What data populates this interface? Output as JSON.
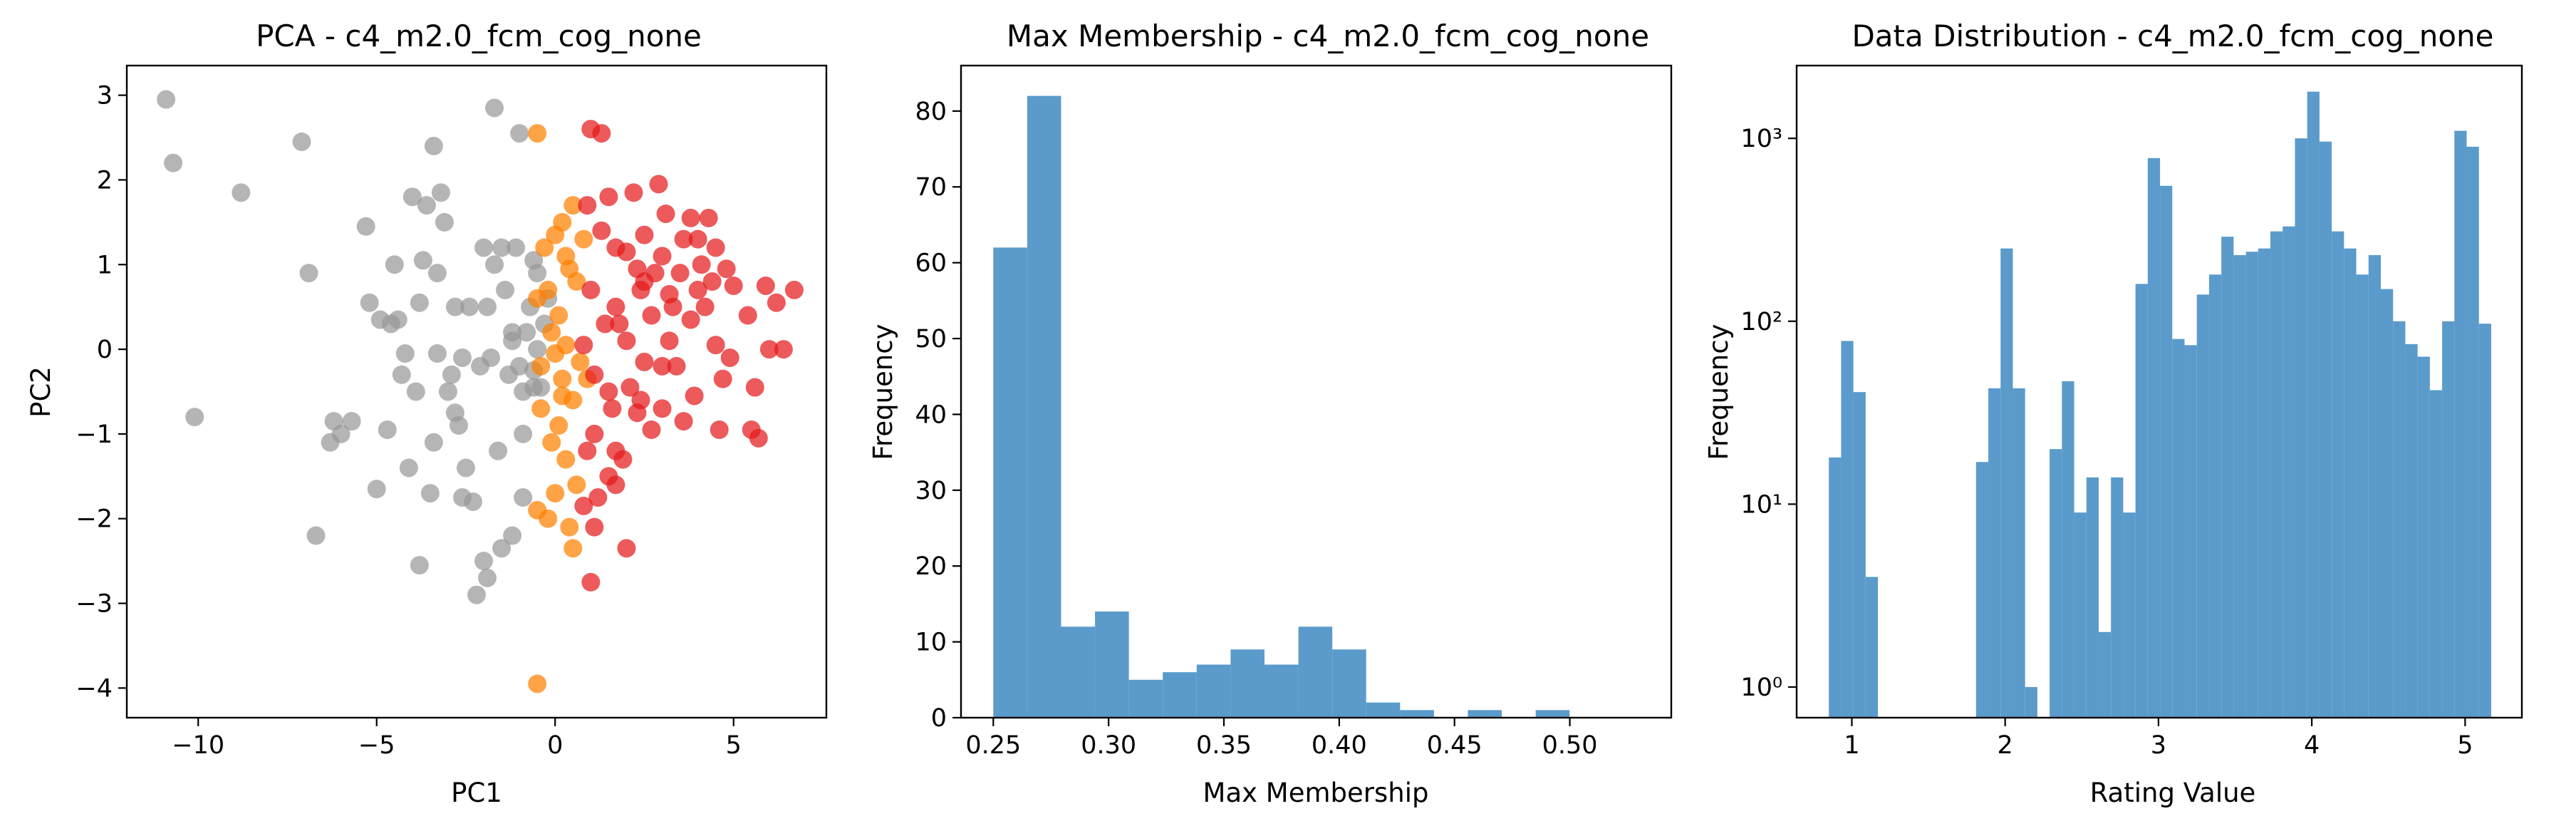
{
  "colors": {
    "red": "#e41a1c",
    "orange": "#ff7f00",
    "gray": "#999999",
    "hist": "#5a9bcb"
  },
  "chart_data": [
    {
      "type": "scatter",
      "title": "PCA - c4_m2.0_fcm_cog_none",
      "xlabel": "PC1",
      "ylabel": "PC2",
      "xlim": [
        -12,
        7.6
      ],
      "ylim": [
        -4.35,
        3.35
      ],
      "xticks": [
        -10,
        -5,
        0,
        5
      ],
      "xtick_labels": [
        "−10",
        "−5",
        "0",
        "5"
      ],
      "yticks": [
        -4,
        -3,
        -2,
        -1,
        0,
        1,
        2,
        3
      ],
      "ytick_labels": [
        "−4",
        "−3",
        "−2",
        "−1",
        "0",
        "1",
        "2",
        "3"
      ],
      "grid": false,
      "series": [
        {
          "color": "gray",
          "points": [
            [
              -10.9,
              2.95
            ],
            [
              -10.7,
              2.2
            ],
            [
              -10.1,
              -0.8
            ],
            [
              -8.8,
              1.85
            ],
            [
              -7.1,
              2.45
            ],
            [
              -6.9,
              0.9
            ],
            [
              -6.7,
              -2.2
            ],
            [
              -6.3,
              -1.1
            ],
            [
              -6.2,
              -0.85
            ],
            [
              -6.0,
              -1.0
            ],
            [
              -5.7,
              -0.85
            ],
            [
              -5.3,
              1.45
            ],
            [
              -5.2,
              0.55
            ],
            [
              -5.0,
              -1.65
            ],
            [
              -4.9,
              0.35
            ],
            [
              -4.7,
              -0.95
            ],
            [
              -4.6,
              0.3
            ],
            [
              -4.5,
              1.0
            ],
            [
              -4.4,
              0.35
            ],
            [
              -4.3,
              -0.3
            ],
            [
              -4.2,
              -0.05
            ],
            [
              -4.1,
              -1.4
            ],
            [
              -4.0,
              1.8
            ],
            [
              -3.9,
              -0.5
            ],
            [
              -3.8,
              0.55
            ],
            [
              -3.7,
              1.05
            ],
            [
              -3.6,
              1.7
            ],
            [
              -3.5,
              -1.7
            ],
            [
              -3.4,
              2.4
            ],
            [
              -3.4,
              -1.1
            ],
            [
              -3.3,
              0.9
            ],
            [
              -3.2,
              1.85
            ],
            [
              -3.1,
              1.5
            ],
            [
              -3.0,
              -0.5
            ],
            [
              -2.9,
              -0.3
            ],
            [
              -2.8,
              -0.75
            ],
            [
              -2.8,
              0.5
            ],
            [
              -2.7,
              -0.9
            ],
            [
              -2.6,
              -0.1
            ],
            [
              -2.5,
              -1.4
            ],
            [
              -2.4,
              0.5
            ],
            [
              -2.3,
              -1.8
            ],
            [
              -2.2,
              -2.9
            ],
            [
              -2.1,
              -0.2
            ],
            [
              -2.0,
              1.2
            ],
            [
              -1.9,
              0.5
            ],
            [
              -1.8,
              -0.1
            ],
            [
              -1.7,
              1.0
            ],
            [
              -1.6,
              -1.2
            ],
            [
              -1.5,
              1.2
            ],
            [
              -1.4,
              0.7
            ],
            [
              -1.3,
              -0.3
            ],
            [
              -1.2,
              0.1
            ],
            [
              -1.1,
              1.2
            ],
            [
              -1.0,
              -0.2
            ],
            [
              -0.9,
              -0.5
            ],
            [
              -0.8,
              0.2
            ],
            [
              -0.7,
              0.5
            ],
            [
              -0.6,
              -0.25
            ],
            [
              -0.5,
              0.0
            ],
            [
              -0.4,
              -0.45
            ],
            [
              -0.3,
              0.3
            ],
            [
              -0.2,
              0.6
            ],
            [
              -1.7,
              2.85
            ],
            [
              -1.0,
              2.55
            ],
            [
              -1.9,
              -2.7
            ],
            [
              -1.5,
              -2.35
            ],
            [
              -2.0,
              -2.5
            ],
            [
              -2.6,
              -1.75
            ],
            [
              -3.8,
              -2.55
            ],
            [
              -0.5,
              0.9
            ],
            [
              -0.9,
              -1.0
            ],
            [
              -1.2,
              0.2
            ],
            [
              -0.6,
              -0.45
            ],
            [
              -1.2,
              -2.2
            ],
            [
              -0.9,
              -1.75
            ],
            [
              -0.6,
              1.05
            ],
            [
              -3.3,
              -0.05
            ]
          ]
        },
        {
          "color": "orange",
          "points": [
            [
              -0.5,
              2.55
            ],
            [
              -0.5,
              -3.95
            ],
            [
              0.5,
              1.7
            ],
            [
              0.2,
              1.5
            ],
            [
              0.0,
              1.35
            ],
            [
              -0.3,
              1.2
            ],
            [
              0.4,
              0.95
            ],
            [
              0.1,
              0.4
            ],
            [
              -0.2,
              0.7
            ],
            [
              -0.5,
              0.6
            ],
            [
              0.3,
              0.05
            ],
            [
              0.0,
              -0.05
            ],
            [
              -0.4,
              -0.2
            ],
            [
              0.2,
              -0.35
            ],
            [
              0.5,
              -0.6
            ],
            [
              0.1,
              -0.9
            ],
            [
              -0.1,
              -1.1
            ],
            [
              0.3,
              -1.3
            ],
            [
              0.0,
              -1.7
            ],
            [
              -0.2,
              -2.0
            ],
            [
              0.4,
              -2.1
            ],
            [
              0.6,
              -1.6
            ],
            [
              -0.5,
              -1.9
            ],
            [
              0.5,
              -2.35
            ],
            [
              -0.4,
              -0.7
            ],
            [
              0.3,
              1.1
            ],
            [
              -0.1,
              0.2
            ],
            [
              0.8,
              1.3
            ],
            [
              0.6,
              0.8
            ],
            [
              0.2,
              -0.55
            ],
            [
              0.7,
              -0.15
            ],
            [
              0.9,
              -0.35
            ]
          ]
        },
        {
          "color": "red",
          "points": [
            [
              1.0,
              2.6
            ],
            [
              1.3,
              2.55
            ],
            [
              2.9,
              1.95
            ],
            [
              1.5,
              1.8
            ],
            [
              2.2,
              1.85
            ],
            [
              0.9,
              1.7
            ],
            [
              3.1,
              1.6
            ],
            [
              3.8,
              1.55
            ],
            [
              4.3,
              1.55
            ],
            [
              1.3,
              1.4
            ],
            [
              2.5,
              1.35
            ],
            [
              3.6,
              1.3
            ],
            [
              4.0,
              1.3
            ],
            [
              4.5,
              1.2
            ],
            [
              2.0,
              1.15
            ],
            [
              3.0,
              1.1
            ],
            [
              4.1,
              1.0
            ],
            [
              1.7,
              1.2
            ],
            [
              2.3,
              0.95
            ],
            [
              4.8,
              0.95
            ],
            [
              3.5,
              0.9
            ],
            [
              4.4,
              0.8
            ],
            [
              5.9,
              0.75
            ],
            [
              6.7,
              0.7
            ],
            [
              1.0,
              0.7
            ],
            [
              2.4,
              0.7
            ],
            [
              3.2,
              0.65
            ],
            [
              4.0,
              0.7
            ],
            [
              5.0,
              0.75
            ],
            [
              1.7,
              0.5
            ],
            [
              3.3,
              0.5
            ],
            [
              4.2,
              0.5
            ],
            [
              6.2,
              0.55
            ],
            [
              1.4,
              0.3
            ],
            [
              2.7,
              0.4
            ],
            [
              3.8,
              0.35
            ],
            [
              5.4,
              0.4
            ],
            [
              0.8,
              0.05
            ],
            [
              2.0,
              0.1
            ],
            [
              3.2,
              0.1
            ],
            [
              4.5,
              0.05
            ],
            [
              6.0,
              0.0
            ],
            [
              6.4,
              0.0
            ],
            [
              1.1,
              -0.3
            ],
            [
              2.5,
              -0.15
            ],
            [
              3.4,
              -0.2
            ],
            [
              4.9,
              -0.1
            ],
            [
              1.5,
              -0.5
            ],
            [
              2.1,
              -0.45
            ],
            [
              3.9,
              -0.55
            ],
            [
              4.7,
              -0.35
            ],
            [
              5.6,
              -0.45
            ],
            [
              1.6,
              -0.7
            ],
            [
              2.3,
              -0.75
            ],
            [
              2.7,
              -0.95
            ],
            [
              3.0,
              -0.7
            ],
            [
              3.6,
              -0.85
            ],
            [
              4.6,
              -0.95
            ],
            [
              5.5,
              -0.95
            ],
            [
              5.7,
              -1.05
            ],
            [
              1.1,
              -1.0
            ],
            [
              1.7,
              -1.2
            ],
            [
              1.9,
              -1.3
            ],
            [
              1.5,
              -1.5
            ],
            [
              0.9,
              -1.2
            ],
            [
              1.7,
              -1.6
            ],
            [
              1.1,
              -2.1
            ],
            [
              1.2,
              -1.75
            ],
            [
              0.8,
              -1.85
            ],
            [
              1.0,
              -2.75
            ],
            [
              2.0,
              -2.35
            ],
            [
              2.4,
              -0.6
            ],
            [
              3.0,
              -0.2
            ],
            [
              1.8,
              0.3
            ],
            [
              2.8,
              0.9
            ],
            [
              2.5,
              0.8
            ]
          ]
        }
      ]
    },
    {
      "type": "bar",
      "title": "Max Membership - c4_m2.0_fcm_cog_none",
      "xlabel": "Max Membership",
      "ylabel": "Frequency",
      "xlim": [
        0.236,
        0.544
      ],
      "ylim": [
        0,
        86
      ],
      "xticks": [
        0.25,
        0.3,
        0.35,
        0.4,
        0.45,
        0.5
      ],
      "xtick_labels": [
        "0.25",
        "0.30",
        "0.35",
        "0.40",
        "0.45",
        "0.50"
      ],
      "yticks": [
        0,
        10,
        20,
        30,
        40,
        50,
        60,
        70,
        80
      ],
      "ytick_labels": [
        "0",
        "10",
        "20",
        "30",
        "40",
        "50",
        "60",
        "70",
        "80"
      ],
      "grid": false,
      "bin_edges": [
        0.25,
        0.2647,
        0.2794,
        0.2941,
        0.3088,
        0.3235,
        0.3382,
        0.3529,
        0.3676,
        0.3823,
        0.397,
        0.4117,
        0.4264,
        0.4411,
        0.4558,
        0.4705,
        0.4852,
        0.4999,
        0.5146,
        0.5293
      ],
      "values": [
        62,
        82,
        12,
        14,
        5,
        6,
        7,
        9,
        7,
        12,
        9,
        2,
        1,
        0,
        1,
        0,
        1,
        0,
        0
      ]
    },
    {
      "type": "bar",
      "title": "Data Distribution - c4_m2.0_fcm_cog_none",
      "xlabel": "Rating Value",
      "ylabel": "Frequency",
      "log_y": true,
      "xlim": [
        0.64,
        5.37
      ],
      "ylim": [
        0.68,
        2500
      ],
      "xticks": [
        1,
        2,
        3,
        4,
        5
      ],
      "xtick_labels": [
        "1",
        "2",
        "3",
        "4",
        "5"
      ],
      "yticks": [
        1,
        10,
        100,
        1000
      ],
      "ytick_labels": [
        "10⁰",
        "10¹",
        "10²",
        "10³"
      ],
      "grid": false,
      "bin_edges": [
        0.85,
        0.93,
        1.01,
        1.09,
        1.17,
        1.25,
        1.33,
        1.41,
        1.49,
        1.57,
        1.65,
        1.73,
        1.81,
        1.89,
        1.97,
        2.05,
        2.13,
        2.21,
        2.29,
        2.37,
        2.45,
        2.53,
        2.61,
        2.69,
        2.77,
        2.85,
        2.93,
        3.01,
        3.09,
        3.17,
        3.25,
        3.33,
        3.41,
        3.49,
        3.57,
        3.65,
        3.73,
        3.81,
        3.89,
        3.97,
        4.05,
        4.13,
        4.21,
        4.29,
        4.37,
        4.45,
        4.53,
        4.61,
        4.69,
        4.77,
        4.85,
        4.93,
        5.01,
        5.09,
        5.17
      ],
      "values": [
        18,
        78,
        41,
        4,
        0,
        0,
        0,
        0,
        0,
        0,
        0,
        0,
        17,
        43,
        250,
        43,
        1,
        0,
        20,
        47,
        9,
        14,
        2,
        14,
        9,
        160,
        780,
        550,
        80,
        74,
        140,
        180,
        290,
        230,
        240,
        250,
        310,
        330,
        1000,
        1800,
        960,
        310,
        250,
        180,
        230,
        150,
        100,
        75,
        64,
        42,
        100,
        1100,
        900,
        97
      ]
    }
  ]
}
